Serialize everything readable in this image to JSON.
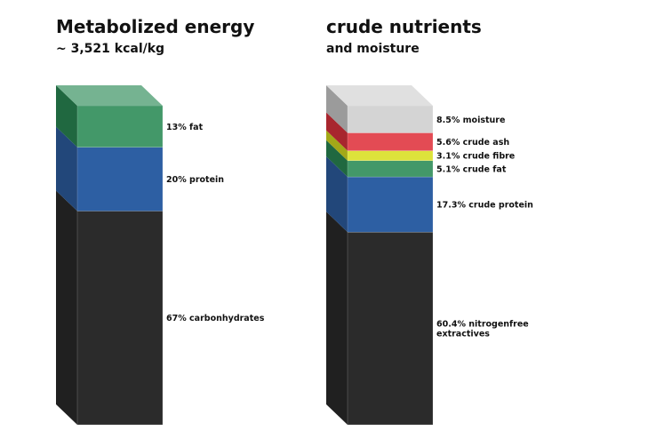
{
  "chart_data": [
    {
      "type": "stacked-bar-3d",
      "title": "Metabolized energy",
      "subtitle": "~ 3,521 kcal/kg",
      "segments": [
        {
          "label": "67% carbonhydrates",
          "value": 67,
          "color": "#2b2b2b"
        },
        {
          "label": "20% protein",
          "value": 20,
          "color": "#2d5fa3"
        },
        {
          "label": "13% fat",
          "value": 13,
          "color": "#2a8a55"
        }
      ]
    },
    {
      "type": "stacked-bar-3d",
      "title": "crude nutrients",
      "subtitle": "and moisture",
      "segments": [
        {
          "label": "60.4% nitrogenfree extractives",
          "lines": [
            "60.4% nitrogenfree",
            "extractives"
          ],
          "value": 60.4,
          "color": "#2b2b2b"
        },
        {
          "label": "17.3% crude protein",
          "value": 17.3,
          "color": "#2d5fa3"
        },
        {
          "label": "5.1% crude fat",
          "value": 5.1,
          "color": "#2a8a55"
        },
        {
          "label": "3.1% crude fibre",
          "value": 3.1,
          "color": "#d9e020"
        },
        {
          "label": "5.6% crude ash",
          "value": 5.6,
          "color": "#e0333d"
        },
        {
          "label": "8.5% moisture",
          "value": 8.5,
          "color": "#cfcfcf"
        }
      ]
    }
  ]
}
